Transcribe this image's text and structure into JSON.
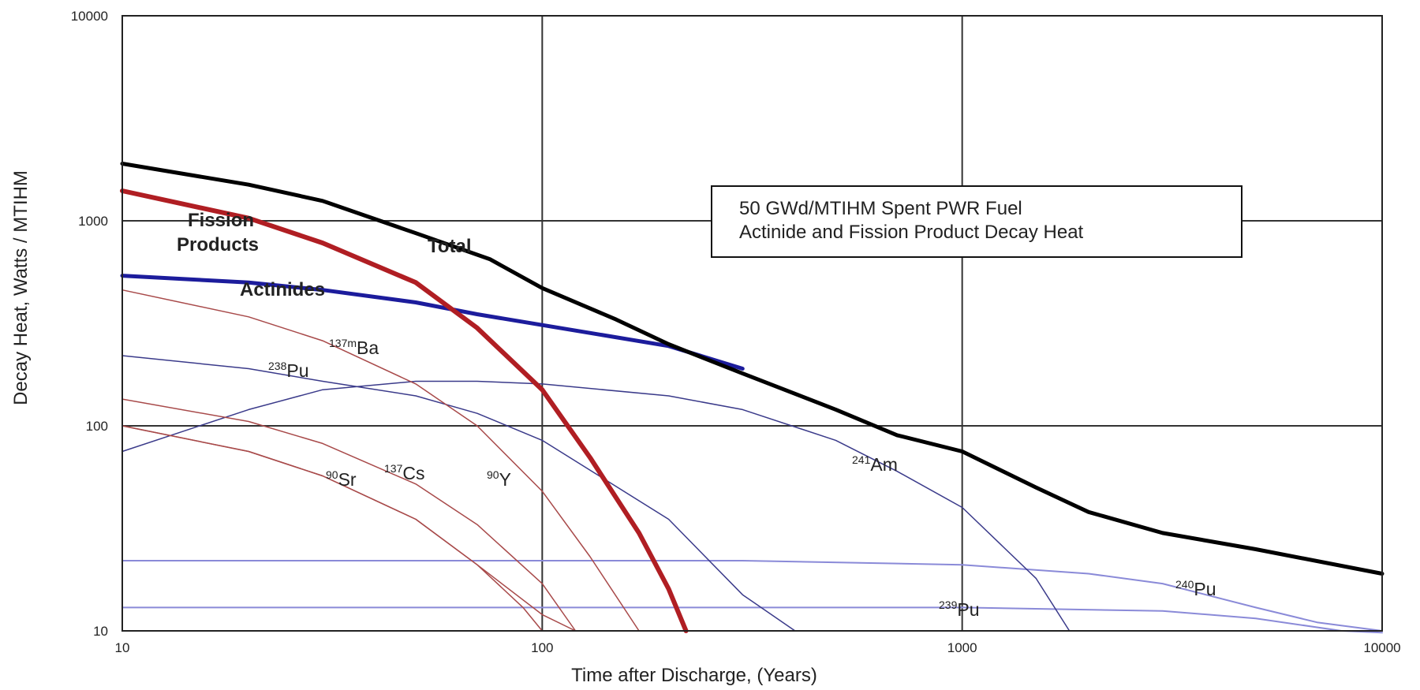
{
  "chart_data": {
    "type": "line",
    "title": "",
    "xlabel": "Time after Discharge, (Years)",
    "ylabel": "Decay Heat, Watts / MTIHM",
    "xscale": "log",
    "yscale": "log",
    "xlim": [
      10,
      10000
    ],
    "ylim": [
      10,
      10000
    ],
    "x_ticks": [
      "10",
      "100",
      "1000",
      "10000"
    ],
    "y_ticks": [
      "10",
      "100",
      "1000",
      "10000"
    ],
    "grid": "major",
    "legend_box": {
      "line1": "50 GWd/MTIHM Spent PWR Fuel",
      "line2": "Actinide and Fission Product Decay Heat"
    },
    "colors": {
      "total": "#000000",
      "fission": "#b01e23",
      "actinides": "#1c1c9c",
      "fp_nuclide": "#a84a4a",
      "act_nuclide": "#3a3a8a",
      "pu_flat": "#8a8ad8"
    },
    "series": [
      {
        "name": "Total",
        "role": "total",
        "points": [
          [
            10,
            1900
          ],
          [
            20,
            1500
          ],
          [
            30,
            1250
          ],
          [
            50,
            870
          ],
          [
            75,
            650
          ],
          [
            100,
            470
          ],
          [
            150,
            330
          ],
          [
            200,
            250
          ],
          [
            300,
            180
          ],
          [
            500,
            120
          ],
          [
            700,
            90
          ],
          [
            1000,
            75
          ],
          [
            1500,
            50
          ],
          [
            2000,
            38
          ],
          [
            3000,
            30
          ],
          [
            5000,
            25
          ],
          [
            10000,
            19
          ]
        ]
      },
      {
        "name": "Fission Products",
        "role": "fission",
        "points": [
          [
            10,
            1400
          ],
          [
            20,
            1030
          ],
          [
            30,
            780
          ],
          [
            50,
            500
          ],
          [
            70,
            300
          ],
          [
            100,
            150
          ],
          [
            130,
            70
          ],
          [
            170,
            30
          ],
          [
            200,
            16
          ],
          [
            220,
            10
          ]
        ]
      },
      {
        "name": "Actinides",
        "role": "actinides",
        "points": [
          [
            10,
            540
          ],
          [
            20,
            500
          ],
          [
            30,
            460
          ],
          [
            50,
            400
          ],
          [
            70,
            350
          ],
          [
            100,
            310
          ],
          [
            200,
            245
          ],
          [
            300,
            190
          ]
        ]
      },
      {
        "label_main": "Ba",
        "label_sup": "137m",
        "role": "fp_nuclide",
        "points": [
          [
            10,
            460
          ],
          [
            20,
            340
          ],
          [
            30,
            260
          ],
          [
            50,
            160
          ],
          [
            70,
            100
          ],
          [
            100,
            48
          ],
          [
            130,
            23
          ],
          [
            170,
            10
          ]
        ]
      },
      {
        "label_main": "Sr",
        "label_sup": "90",
        "role": "fp_nuclide",
        "points": [
          [
            10,
            100
          ],
          [
            20,
            75
          ],
          [
            30,
            57
          ],
          [
            50,
            35
          ],
          [
            70,
            21
          ],
          [
            90,
            13
          ],
          [
            100,
            10
          ]
        ]
      },
      {
        "label_main": "Cs",
        "label_sup": "137",
        "role": "fp_nuclide",
        "points": [
          [
            10,
            135
          ],
          [
            20,
            105
          ],
          [
            30,
            82
          ],
          [
            50,
            52
          ],
          [
            70,
            33
          ],
          [
            100,
            17
          ],
          [
            120,
            10
          ]
        ]
      },
      {
        "label_main": "Y",
        "label_sup": "90",
        "role": "fp_nuclide",
        "points": [
          [
            10,
            100
          ],
          [
            20,
            75
          ],
          [
            30,
            57
          ],
          [
            50,
            35
          ],
          [
            70,
            21
          ],
          [
            100,
            12
          ],
          [
            120,
            10
          ]
        ]
      },
      {
        "label_main": "Pu",
        "label_sup": "238",
        "role": "act_nuclide",
        "points": [
          [
            10,
            220
          ],
          [
            20,
            190
          ],
          [
            30,
            165
          ],
          [
            50,
            140
          ],
          [
            70,
            115
          ],
          [
            100,
            85
          ],
          [
            200,
            35
          ],
          [
            300,
            15
          ],
          [
            400,
            10
          ]
        ]
      },
      {
        "label_main": "Am",
        "label_sup": "241",
        "role": "act_nuclide",
        "points": [
          [
            10,
            75
          ],
          [
            20,
            120
          ],
          [
            30,
            150
          ],
          [
            50,
            165
          ],
          [
            70,
            165
          ],
          [
            100,
            160
          ],
          [
            200,
            140
          ],
          [
            300,
            120
          ],
          [
            500,
            85
          ],
          [
            700,
            60
          ],
          [
            1000,
            40
          ],
          [
            1500,
            18
          ],
          [
            1800,
            10
          ]
        ]
      },
      {
        "label_main": "Pu",
        "label_sup": "240",
        "role": "pu_flat",
        "points": [
          [
            10,
            22
          ],
          [
            100,
            22
          ],
          [
            300,
            22
          ],
          [
            1000,
            21
          ],
          [
            2000,
            19
          ],
          [
            3000,
            17
          ],
          [
            5000,
            13
          ],
          [
            7000,
            11
          ],
          [
            10000,
            10
          ]
        ]
      },
      {
        "label_main": "Pu",
        "label_sup": "239",
        "role": "pu_flat",
        "points": [
          [
            10,
            13
          ],
          [
            100,
            13
          ],
          [
            1000,
            13
          ],
          [
            3000,
            12.5
          ],
          [
            5000,
            11.5
          ],
          [
            8000,
            10
          ],
          [
            10000,
            9.8
          ]
        ]
      }
    ]
  }
}
